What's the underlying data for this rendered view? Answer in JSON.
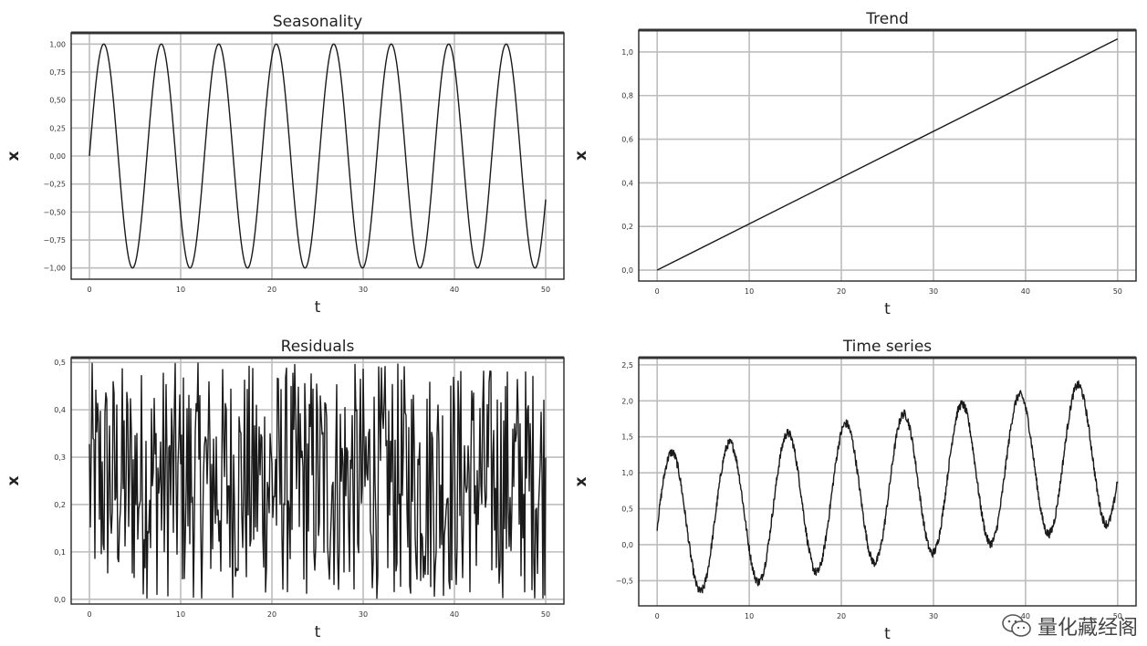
{
  "chart_data": [
    {
      "type": "line",
      "title": "Seasonality",
      "xlabel": "t",
      "ylabel": "x",
      "xlim": [
        -2,
        52
      ],
      "ylim": [
        -1.1,
        1.1
      ],
      "xticks": [
        0,
        10,
        20,
        30,
        40,
        50
      ],
      "yticks": [
        -1.0,
        -0.75,
        -0.5,
        -0.25,
        0.0,
        0.25,
        0.5,
        0.75,
        1.0
      ],
      "ytick_labels": [
        "−1,00",
        "−0,75",
        "−0,50",
        "−0,25",
        "0,00",
        "0,25",
        "0,50",
        "0,75",
        "1,00"
      ],
      "grid": true,
      "series": [
        {
          "shape": "sine",
          "amplitude": 1.0,
          "period": 6.3,
          "offset": 0.0,
          "slope": 0.0,
          "noise": 0.0,
          "x_start": 0,
          "x_end": 50
        }
      ]
    },
    {
      "type": "line",
      "title": "Trend",
      "xlabel": "t",
      "ylabel": "x",
      "xlim": [
        -2,
        52
      ],
      "ylim": [
        -0.05,
        1.1
      ],
      "xticks": [
        0,
        10,
        20,
        30,
        40,
        50
      ],
      "yticks": [
        0.0,
        0.2,
        0.4,
        0.6,
        0.8,
        1.0
      ],
      "ytick_labels": [
        "0,0",
        "0,2",
        "0,4",
        "0,6",
        "0,8",
        "1,0"
      ],
      "grid": true,
      "series": [
        {
          "shape": "linear",
          "x": [
            0,
            50
          ],
          "y": [
            0.0,
            1.06
          ]
        }
      ]
    },
    {
      "type": "line",
      "title": "Residuals",
      "xlabel": "t",
      "ylabel": "x",
      "xlim": [
        -2,
        52
      ],
      "ylim": [
        -0.01,
        0.51
      ],
      "xticks": [
        0,
        10,
        20,
        30,
        40,
        50
      ],
      "yticks": [
        0.0,
        0.1,
        0.2,
        0.3,
        0.4,
        0.5
      ],
      "ytick_labels": [
        "0,0",
        "0,1",
        "0,2",
        "0,3",
        "0,4",
        "0,5"
      ],
      "grid": true,
      "series": [
        {
          "shape": "uniform-noise",
          "low": 0.0,
          "high": 0.5,
          "x_start": 0,
          "x_end": 50
        }
      ]
    },
    {
      "type": "line",
      "title": "Time series",
      "xlabel": "t",
      "ylabel": "x",
      "xlim": [
        -2,
        52
      ],
      "ylim": [
        -0.85,
        2.6
      ],
      "xticks": [
        0,
        10,
        20,
        30,
        40,
        50
      ],
      "yticks": [
        -0.5,
        0.0,
        0.5,
        1.0,
        1.5,
        2.0,
        2.5
      ],
      "ytick_labels": [
        "−0,5",
        "0,0",
        "0,5",
        "1,0",
        "1,5",
        "2,0",
        "2,5"
      ],
      "grid": true,
      "series": [
        {
          "shape": "sine",
          "amplitude": 1.0,
          "period": 6.3,
          "offset": 0.25,
          "slope": 0.0212,
          "noise": 0.06,
          "x_start": 0,
          "x_end": 50
        }
      ]
    }
  ],
  "watermark": {
    "text": "量化藏经阁"
  }
}
